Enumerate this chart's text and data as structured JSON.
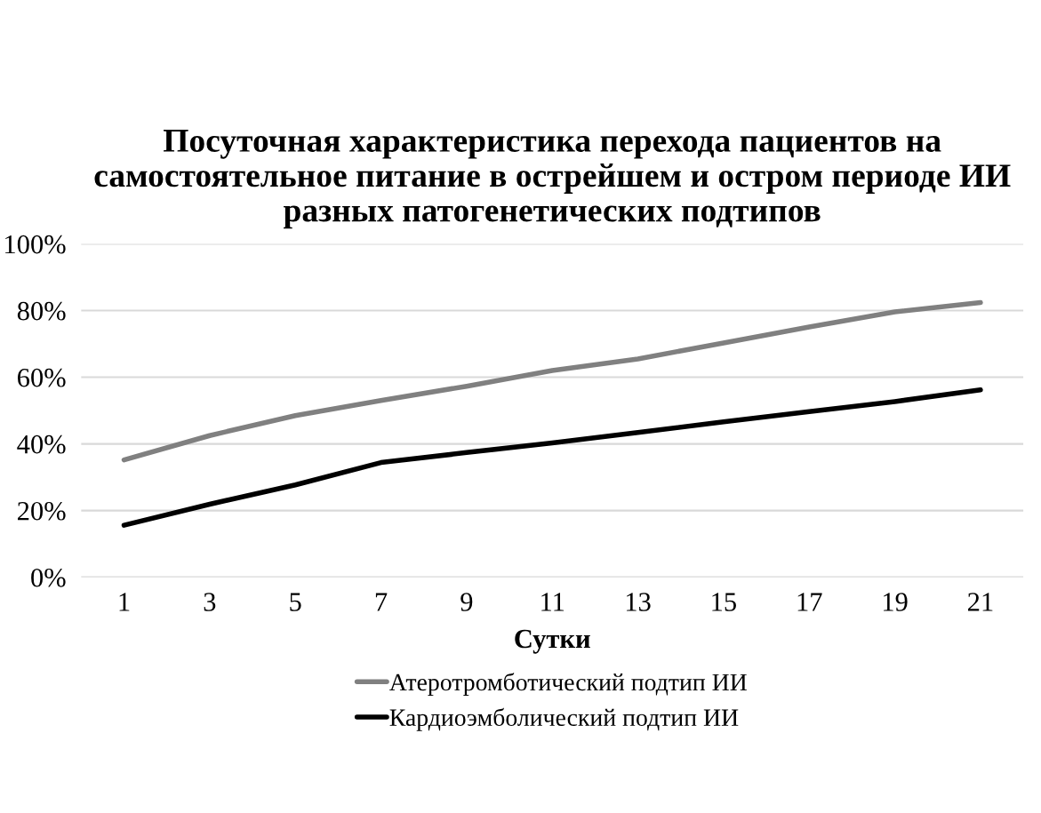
{
  "chart_data": {
    "type": "line",
    "title": "Посуточная характеристика перехода пациентов на самостоятельное питание в острейшем и остром периоде ИИ разных патогенетических подтипов",
    "xlabel": "Сутки",
    "categories": [
      "1",
      "3",
      "5",
      "7",
      "9",
      "11",
      "13",
      "15",
      "17",
      "19",
      "21"
    ],
    "series": [
      {
        "name": "Атеротромботический подтип ИИ",
        "color": "#808080",
        "values": [
          35.2,
          42.5,
          48.5,
          53,
          57.3,
          62,
          65.5,
          70.3,
          75.1,
          79.6,
          82.4
        ]
      },
      {
        "name": "Кардиоэмболический подтип ИИ",
        "color": "#000000",
        "values": [
          15.6,
          21.9,
          27.7,
          34.4,
          37.4,
          40.3,
          43.4,
          46.6,
          49.7,
          52.7,
          56.2
        ]
      }
    ],
    "ylim": [
      0,
      100
    ],
    "yticks": [
      {
        "value": 0,
        "label": "0%"
      },
      {
        "value": 20,
        "label": "20%"
      },
      {
        "value": 40,
        "label": "40%"
      },
      {
        "value": 60,
        "label": "60%"
      },
      {
        "value": 80,
        "label": "80%"
      },
      {
        "value": 100,
        "label": "100%"
      }
    ],
    "grid": "y",
    "legend": "bottom",
    "marker": "none",
    "line_style": "solid"
  }
}
